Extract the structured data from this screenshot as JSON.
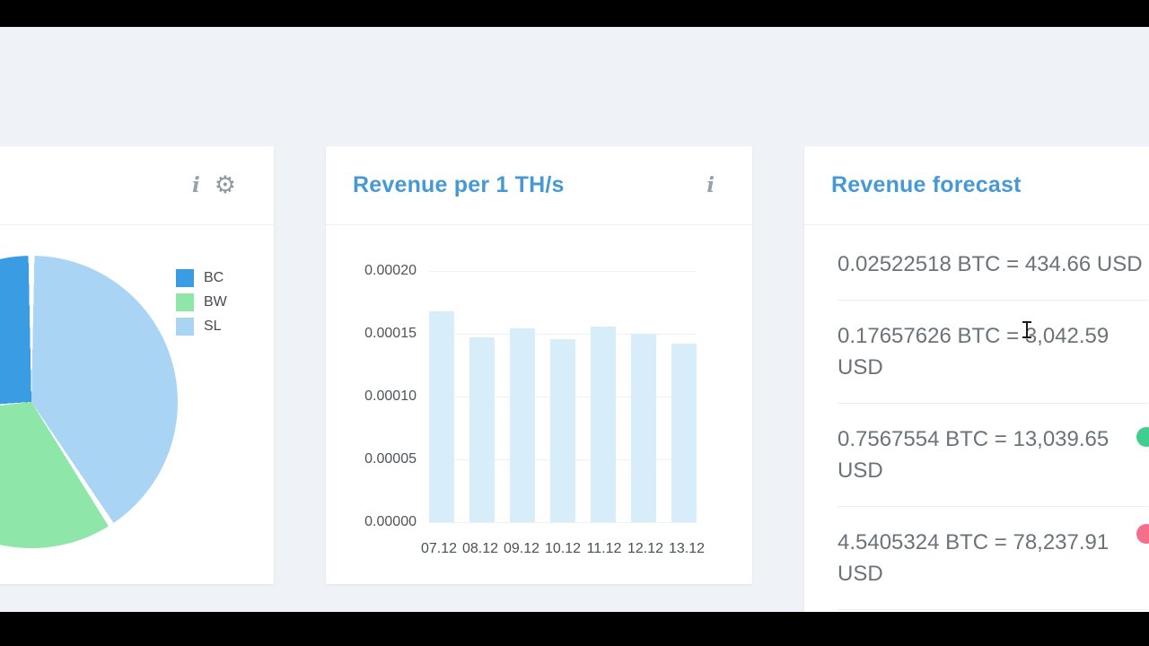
{
  "theme": {
    "background": "#eff2f6",
    "card_background": "#ffffff",
    "title_color": "#4799d4",
    "letterbox_color": "#000000"
  },
  "pie_card": {
    "icons": {
      "info": "i",
      "gear": "⚙"
    },
    "chart_data": {
      "type": "pie",
      "legend_position": "top-right",
      "segments": [
        {
          "label": "SL",
          "color": "#a9d4f3",
          "start_deg": 0,
          "end_deg": 147,
          "percent": 40.8
        },
        {
          "label": "BW",
          "color": "#8ee6a9",
          "start_deg": 147,
          "end_deg": 265,
          "percent": 32.8
        },
        {
          "label": "BC",
          "color": "#3a9de4",
          "start_deg": 265,
          "end_deg": 360,
          "percent": 26.4
        }
      ],
      "legend": [
        {
          "label": "BC",
          "color": "#3a9de4"
        },
        {
          "label": "BW",
          "color": "#8ee6a9"
        },
        {
          "label": "SL",
          "color": "#a9d4f3"
        }
      ]
    }
  },
  "revenue_card": {
    "title": "Revenue per 1 TH/s",
    "icons": {
      "info": "i"
    },
    "chart_data": {
      "type": "bar",
      "categories": [
        "07.12",
        "08.12",
        "09.12",
        "10.12",
        "11.12",
        "12.12",
        "13.12"
      ],
      "values": [
        0.000168,
        0.000147,
        0.000154,
        0.000146,
        0.000156,
        0.00015,
        0.000142
      ],
      "ylim": [
        0,
        0.0002
      ],
      "yticks": [
        "0.00020",
        "0.00015",
        "0.00010",
        "0.00005",
        "0.00000"
      ],
      "bar_color": "#d7edf9",
      "grid": true,
      "xlabel": "",
      "ylabel": ""
    }
  },
  "forecast_card": {
    "title": "Revenue forecast",
    "rows": [
      "0.02522518 BTC = 434.66 USD",
      "0.17657626 BTC = 3,042.59 USD",
      "0.7567554 BTC = 13,039.65 USD",
      "4.5405324 BTC = 78,237.91 USD"
    ],
    "badges": [
      {
        "color": "#3ecf8e"
      },
      {
        "color": "#f2708a"
      }
    ]
  },
  "cursor": {
    "type": "text-ibeam"
  }
}
